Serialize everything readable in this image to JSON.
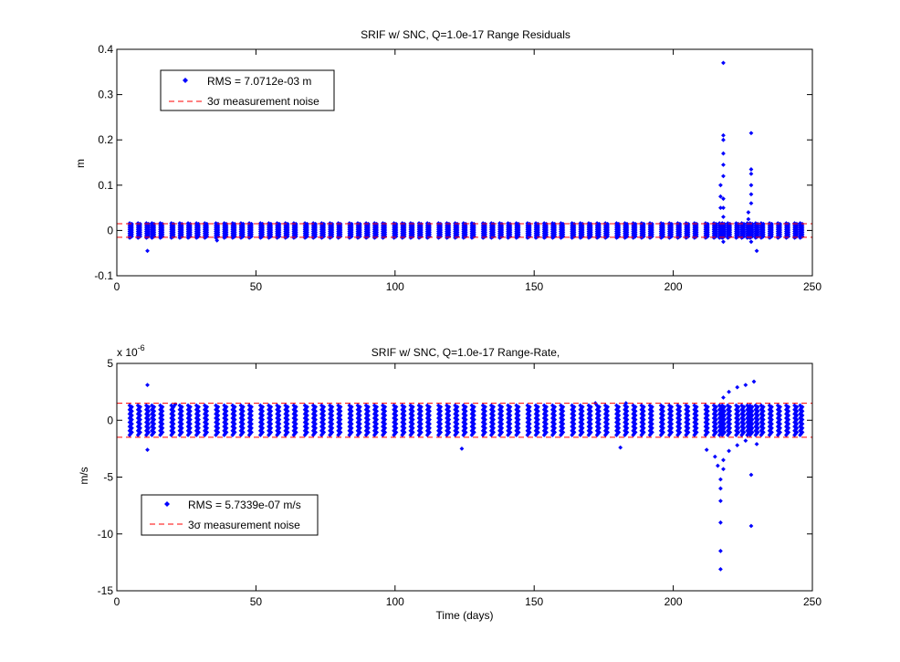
{
  "chart_data": [
    {
      "type": "scatter",
      "title": "SRIF w/ SNC, Q=1.0e-17 Range Residuals",
      "xlabel": "",
      "ylabel": "m",
      "xlim": [
        0,
        250
      ],
      "ylim": [
        -0.1,
        0.4
      ],
      "xticks": [
        "0",
        "50",
        "100",
        "150",
        "200",
        "250"
      ],
      "yticks": [
        "-0.1",
        "0",
        "0.1",
        "0.2",
        "0.3",
        "0.4"
      ],
      "grid": false,
      "legend_position": "top-left",
      "colors": {
        "points": "#0000ff",
        "noise": "#ff0000"
      },
      "series": [
        {
          "name": "RMS = 7.0712e-03 m",
          "kind": "points",
          "tracking_days": [
            5,
            8,
            11,
            13,
            16,
            20,
            23,
            26,
            29,
            32,
            36,
            39,
            42,
            45,
            48,
            52,
            55,
            58,
            61,
            64,
            68,
            71,
            74,
            77,
            80,
            84,
            87,
            90,
            93,
            96,
            100,
            103,
            106,
            109,
            112,
            116,
            119,
            122,
            125,
            128,
            132,
            135,
            138,
            141,
            144,
            148,
            151,
            154,
            157,
            160,
            164,
            167,
            170,
            173,
            176,
            180,
            183,
            186,
            189,
            192,
            196,
            199,
            202,
            205,
            208,
            212,
            215,
            217,
            218,
            220,
            223,
            225,
            227,
            228,
            230,
            232,
            235,
            238,
            241,
            244,
            246
          ],
          "band_low": -0.016,
          "band_high": 0.016,
          "outliers": [
            {
              "x": 11,
              "y": -0.045
            },
            {
              "x": 36,
              "y": -0.022
            },
            {
              "x": 217,
              "y": 0.05
            },
            {
              "x": 217,
              "y": 0.075
            },
            {
              "x": 217,
              "y": 0.1
            },
            {
              "x": 218,
              "y": 0.03
            },
            {
              "x": 218,
              "y": 0.05
            },
            {
              "x": 218,
              "y": 0.07
            },
            {
              "x": 218,
              "y": 0.12
            },
            {
              "x": 218,
              "y": 0.145
            },
            {
              "x": 218,
              "y": 0.17
            },
            {
              "x": 218,
              "y": 0.2
            },
            {
              "x": 218,
              "y": 0.21
            },
            {
              "x": 218,
              "y": 0.37
            },
            {
              "x": 218,
              "y": -0.025
            },
            {
              "x": 227,
              "y": 0.025
            },
            {
              "x": 227,
              "y": 0.04
            },
            {
              "x": 228,
              "y": 0.06
            },
            {
              "x": 228,
              "y": 0.08
            },
            {
              "x": 228,
              "y": 0.1
            },
            {
              "x": 228,
              "y": 0.125
            },
            {
              "x": 228,
              "y": 0.135
            },
            {
              "x": 228,
              "y": 0.215
            },
            {
              "x": 228,
              "y": -0.025
            },
            {
              "x": 230,
              "y": -0.045
            }
          ]
        },
        {
          "name": "3σ measurement noise",
          "kind": "dashed-lines",
          "values": [
            0.015,
            -0.015
          ]
        }
      ]
    },
    {
      "type": "scatter",
      "title": "SRIF w/ SNC, Q=1.0e-17 Range-Rate,",
      "xlabel": "Time (days)",
      "ylabel": "m/s",
      "scale_label": "x 10",
      "scale_exponent": "-6",
      "xlim": [
        0,
        250
      ],
      "ylim": [
        -15,
        5
      ],
      "xticks": [
        "0",
        "50",
        "100",
        "150",
        "200",
        "250"
      ],
      "yticks": [
        "-15",
        "-10",
        "-5",
        "0",
        "5"
      ],
      "grid": false,
      "legend_position": "bottom-left",
      "colors": {
        "points": "#0000ff",
        "noise": "#ff0000"
      },
      "series": [
        {
          "name": "RMS = 5.7339e-07 m/s",
          "kind": "points",
          "tracking_days": [
            5,
            8,
            11,
            13,
            16,
            20,
            23,
            26,
            29,
            32,
            36,
            39,
            42,
            45,
            48,
            52,
            55,
            58,
            61,
            64,
            68,
            71,
            74,
            77,
            80,
            84,
            87,
            90,
            93,
            96,
            100,
            103,
            106,
            109,
            112,
            116,
            119,
            122,
            125,
            128,
            132,
            135,
            138,
            141,
            144,
            148,
            151,
            154,
            157,
            160,
            164,
            167,
            170,
            173,
            176,
            180,
            183,
            186,
            189,
            192,
            196,
            199,
            202,
            205,
            208,
            212,
            215,
            217,
            218,
            220,
            223,
            225,
            227,
            228,
            230,
            232,
            235,
            238,
            241,
            244,
            246
          ],
          "band_low": -1.3,
          "band_high": 1.3,
          "outliers": [
            {
              "x": 11,
              "y": 3.1
            },
            {
              "x": 11,
              "y": -2.6
            },
            {
              "x": 21,
              "y": 1.4
            },
            {
              "x": 124,
              "y": -2.5
            },
            {
              "x": 172,
              "y": 1.5
            },
            {
              "x": 181,
              "y": -2.4
            },
            {
              "x": 183,
              "y": 1.5
            },
            {
              "x": 212,
              "y": -2.6
            },
            {
              "x": 215,
              "y": -3.2
            },
            {
              "x": 216,
              "y": -4.0
            },
            {
              "x": 217,
              "y": -5.2
            },
            {
              "x": 217,
              "y": -6.0
            },
            {
              "x": 217,
              "y": -7.1
            },
            {
              "x": 217,
              "y": -9.0
            },
            {
              "x": 217,
              "y": -11.5
            },
            {
              "x": 217,
              "y": -13.1
            },
            {
              "x": 218,
              "y": -3.5
            },
            {
              "x": 218,
              "y": -4.3
            },
            {
              "x": 218,
              "y": 2.0
            },
            {
              "x": 220,
              "y": 2.5
            },
            {
              "x": 220,
              "y": -2.7
            },
            {
              "x": 223,
              "y": 2.9
            },
            {
              "x": 223,
              "y": -2.2
            },
            {
              "x": 226,
              "y": 3.1
            },
            {
              "x": 226,
              "y": -1.8
            },
            {
              "x": 228,
              "y": -4.8
            },
            {
              "x": 228,
              "y": -9.3
            },
            {
              "x": 229,
              "y": 3.4
            },
            {
              "x": 230,
              "y": -2.1
            }
          ]
        },
        {
          "name": "3σ measurement noise",
          "kind": "dashed-lines",
          "values": [
            1.5,
            -1.5
          ]
        }
      ]
    }
  ]
}
